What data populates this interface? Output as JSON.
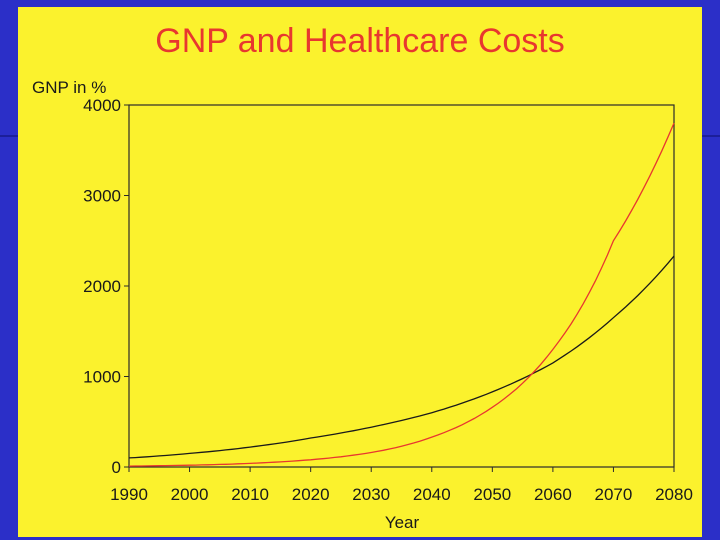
{
  "chart_data": {
    "type": "line",
    "title": "GNP and Healthcare Costs",
    "ylabel": "GNP in %",
    "xlabel": "Year",
    "xlim": [
      1990,
      2080
    ],
    "ylim": [
      0,
      4000
    ],
    "x_ticks": [
      "1990",
      "2000",
      "2010",
      "2020",
      "2030",
      "2040",
      "2050",
      "2060",
      "2070",
      "2080"
    ],
    "y_ticks": [
      "0",
      "1000",
      "2000",
      "3000",
      "4000"
    ],
    "grid": false,
    "x": [
      1990,
      2000,
      2010,
      2020,
      2030,
      2040,
      2050,
      2060,
      2070,
      2080
    ],
    "series": [
      {
        "color": "#1a1a1a",
        "values": [
          100,
          150,
          220,
          320,
          440,
          600,
          830,
          1150,
          1650,
          2330
        ]
      },
      {
        "color": "#e8372f",
        "values": [
          10,
          20,
          40,
          80,
          160,
          330,
          660,
          1300,
          2500,
          3800
        ]
      }
    ]
  }
}
